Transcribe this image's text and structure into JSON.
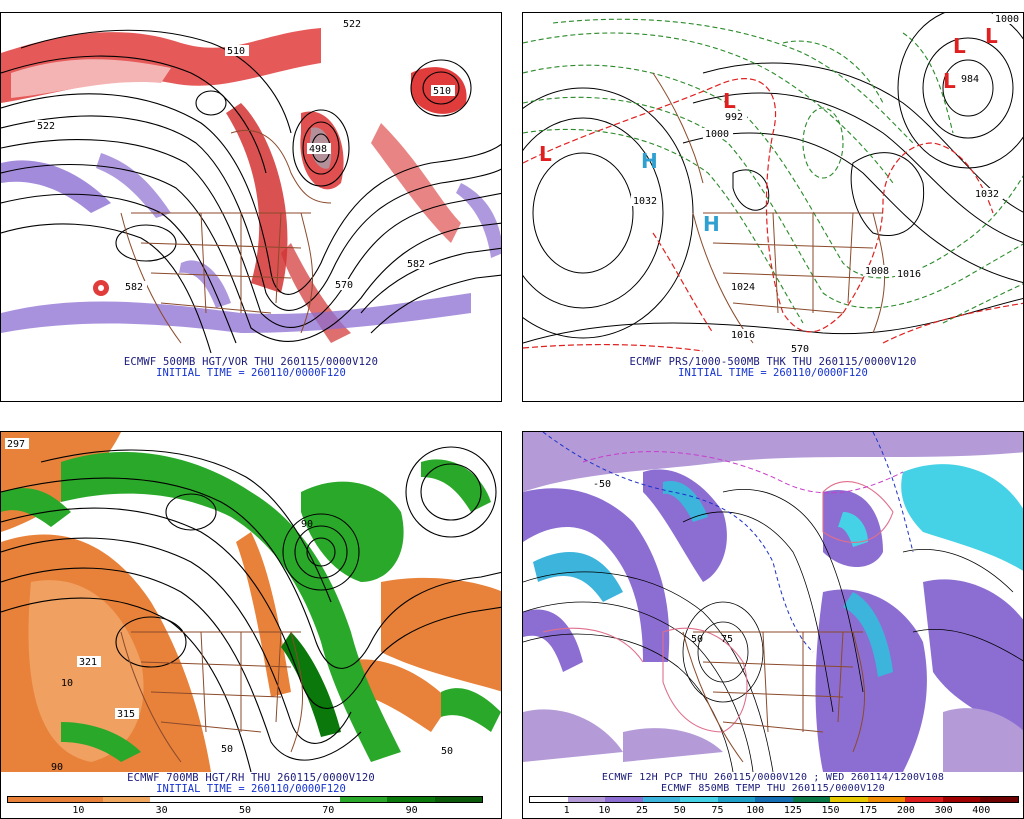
{
  "panels": [
    {
      "id": "tl",
      "caption": "ECMWF 500MB HGT/VOR THU 260115/0000V120",
      "initial": "INITIAL TIME = 260110/0000F120",
      "contour_labels": [
        "522",
        "510",
        "498",
        "522",
        "510",
        "582",
        "582",
        "570"
      ]
    },
    {
      "id": "tr",
      "caption": "ECMWF PRS/1000-500MB THK THU 260115/0000V120",
      "initial": "INITIAL TIME = 260110/0000F120",
      "contour_labels": [
        "1032",
        "1032",
        "1024",
        "1016",
        "1008",
        "1000",
        "992",
        "1016",
        "984",
        "1000",
        "570"
      ],
      "highs_lows": [
        "H",
        "H",
        "L",
        "L",
        "L",
        "L",
        "L"
      ]
    },
    {
      "id": "bl",
      "caption": "ECMWF 700MB HGT/RH THU 260115/0000V120",
      "initial": "INITIAL TIME = 260110/0000F120",
      "contour_labels": [
        "297",
        "321",
        "315",
        "50",
        "10",
        "90",
        "50",
        "90"
      ],
      "colorbar": {
        "colors": [
          "#e8823a",
          "#e8823a",
          "#f0a860",
          "#ffffff",
          "#ffffff",
          "#ffffff",
          "#ffffff",
          "#2aa82a",
          "#0a780a",
          "#0a5a0a"
        ],
        "ticks": [
          "10",
          "30",
          "50",
          "70",
          "90"
        ]
      }
    },
    {
      "id": "br",
      "caption": "ECMWF 12H PCP THU 260115/0000V120 ; WED 260114/1200V108",
      "initial": "ECMWF 850MB TEMP THU 260115/0000V120",
      "contour_labels": [
        "50",
        "75",
        "-50"
      ],
      "colorbar": {
        "colors": [
          "#ffffff",
          "#b49bd8",
          "#8c6ed2",
          "#3cb4dc",
          "#46d2e6",
          "#1ea0c8",
          "#146eb4",
          "#0a7846",
          "#e6c800",
          "#f08c00",
          "#dc1e1e",
          "#a00000",
          "#6e0000"
        ],
        "ticks": [
          "1",
          "10",
          "25",
          "50",
          "75",
          "100",
          "125",
          "150",
          "175",
          "200",
          "300",
          "400"
        ]
      }
    }
  ]
}
